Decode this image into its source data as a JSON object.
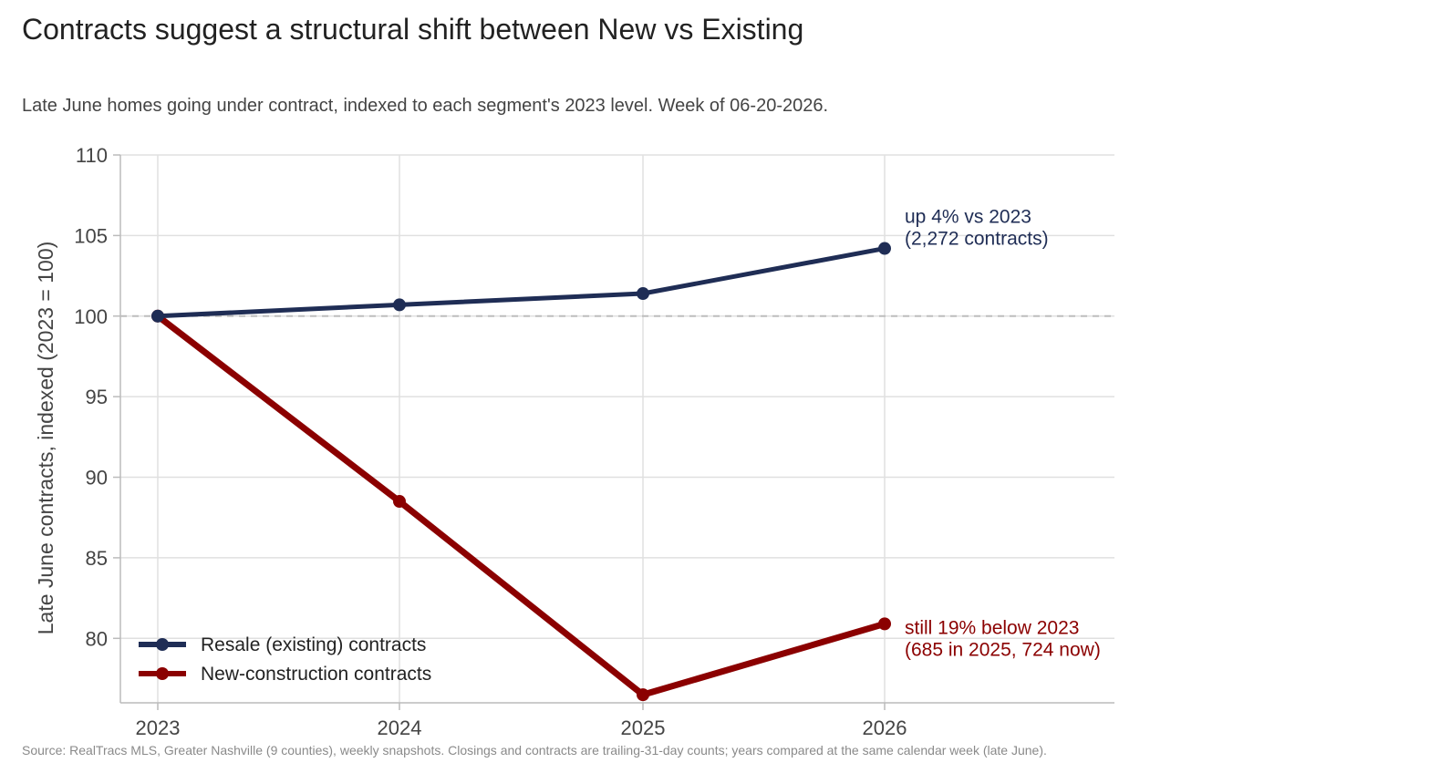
{
  "title": "Contracts suggest a structural shift between New vs Existing",
  "subtitle": "Late June homes going under contract, indexed to each segment's 2023 level. Week of 06-20-2026.",
  "source": "Source: RealTracs MLS, Greater Nashville (9 counties), weekly snapshots. Closings and contracts are trailing-31-day counts; years compared at the same calendar week (late June).",
  "colors": {
    "resale": "#1f2d55",
    "new_construction": "#8b0000",
    "grid": "#e0e0e0",
    "axis": "#bbbbbb",
    "baseline": "#bdbdbd",
    "tick_text": "#444444"
  },
  "chart_data": {
    "type": "line",
    "x": [
      "2023",
      "2024",
      "2025",
      "2026"
    ],
    "series": [
      {
        "name": "Resale (existing) contracts",
        "values": [
          100,
          100.7,
          101.4,
          104.2
        ],
        "color_key": "resale"
      },
      {
        "name": "New-construction contracts",
        "values": [
          100,
          88.5,
          76.5,
          80.9
        ],
        "color_key": "new_construction"
      }
    ],
    "ylabel": "Late June contracts, indexed (2023 = 100)",
    "xlabel": "",
    "ylim": [
      76,
      110
    ],
    "yticks": [
      80,
      85,
      90,
      95,
      100,
      105,
      110
    ],
    "reference_line": 100,
    "grid": true,
    "legend_position": "bottom-left",
    "annotations": [
      {
        "series": 0,
        "lines": [
          "up 4% vs 2023",
          "(2,272 contracts)"
        ]
      },
      {
        "series": 1,
        "lines": [
          "still 19% below 2023",
          "(685 in 2025, 724 now)"
        ]
      }
    ]
  }
}
